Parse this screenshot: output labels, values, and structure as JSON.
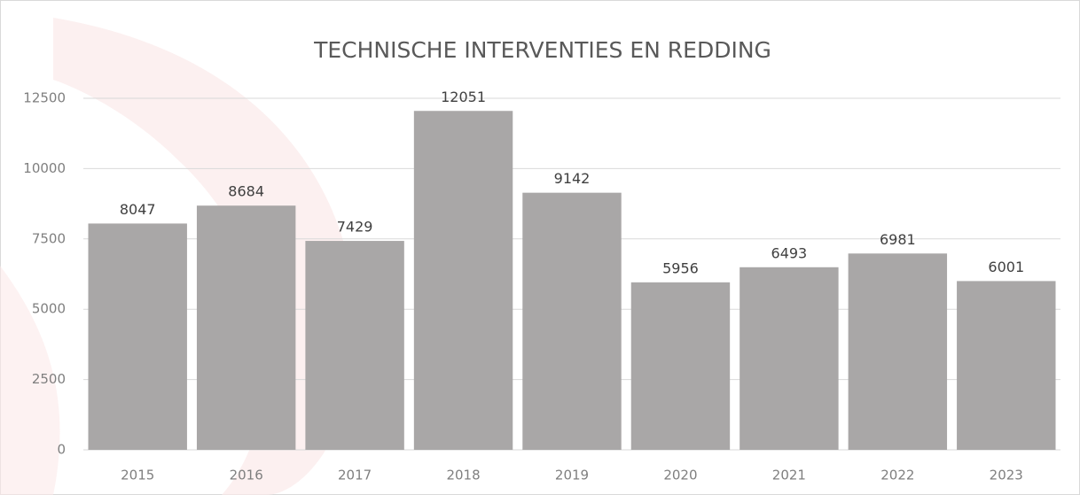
{
  "chart_data": {
    "type": "bar",
    "title": "TECHNISCHE INTERVENTIES EN REDDING",
    "categories": [
      "2015",
      "2016",
      "2017",
      "2018",
      "2019",
      "2020",
      "2021",
      "2022",
      "2023"
    ],
    "values": [
      8047,
      8684,
      7429,
      12051,
      9142,
      5956,
      6493,
      6981,
      6001
    ],
    "color": "#a9a7a7",
    "ylim": [
      0,
      12500
    ],
    "yticks": [
      0,
      2500,
      5000,
      7500,
      10000,
      12500
    ],
    "grid": true
  }
}
